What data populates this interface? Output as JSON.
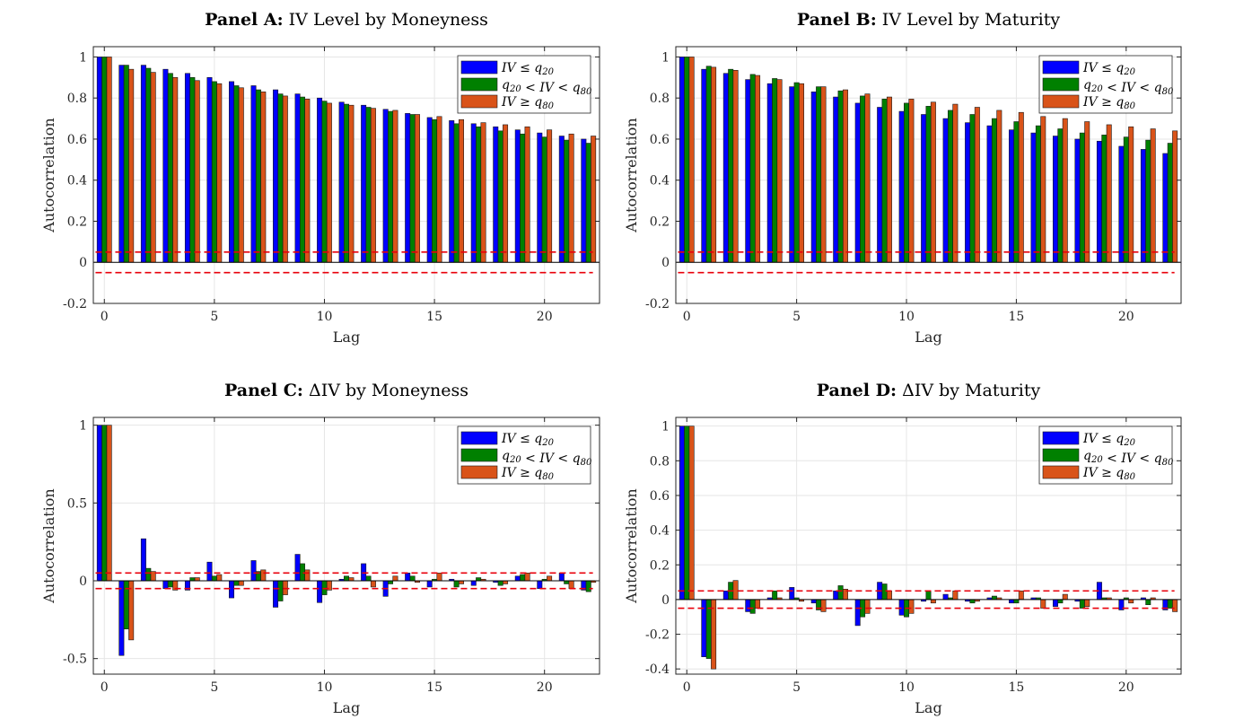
{
  "colors": {
    "blue": "#0000ff",
    "green": "#008000",
    "orange": "#d95319",
    "threshold": "#e8000b"
  },
  "chart_data": [
    {
      "type": "bar",
      "title_bold": "Panel A:",
      "title_rest": "IV Level by Moneyness",
      "xlabel": "Lag",
      "ylabel": "Autocorrelation",
      "ylim": [
        -0.2,
        1.05
      ],
      "xlim": [
        -0.5,
        22.5
      ],
      "yticks": [
        -0.2,
        0,
        0.2,
        0.4,
        0.6,
        0.8,
        1
      ],
      "ytick_labels": [
        "-0.2",
        "0",
        "0.2",
        "0.4",
        "0.6",
        "0.8",
        "1"
      ],
      "xticks": [
        0,
        5,
        10,
        15,
        20
      ],
      "xtick_labels": [
        "0",
        "5",
        "10",
        "15",
        "20"
      ],
      "grid": true,
      "legend_position": "top-right",
      "conf_band": [
        0.05,
        -0.05
      ],
      "x": [
        0,
        1,
        2,
        3,
        4,
        5,
        6,
        7,
        8,
        9,
        10,
        11,
        12,
        13,
        14,
        15,
        16,
        17,
        18,
        19,
        20,
        21,
        22
      ],
      "series": [
        {
          "name": "IV ≤ q20",
          "color": "#0000ff",
          "values": [
            1,
            0.96,
            0.96,
            0.94,
            0.92,
            0.9,
            0.88,
            0.86,
            0.84,
            0.82,
            0.8,
            0.78,
            0.765,
            0.745,
            0.725,
            0.705,
            0.69,
            0.675,
            0.66,
            0.645,
            0.63,
            0.615,
            0.6
          ]
        },
        {
          "name": "q20 < IV < q80",
          "color": "#008000",
          "values": [
            1,
            0.96,
            0.945,
            0.92,
            0.9,
            0.88,
            0.86,
            0.84,
            0.82,
            0.805,
            0.785,
            0.77,
            0.755,
            0.735,
            0.72,
            0.695,
            0.675,
            0.66,
            0.64,
            0.625,
            0.61,
            0.595,
            0.58
          ]
        },
        {
          "name": "IV ≥ q80",
          "color": "#d95319",
          "values": [
            1,
            0.94,
            0.925,
            0.9,
            0.885,
            0.87,
            0.85,
            0.83,
            0.81,
            0.795,
            0.775,
            0.765,
            0.75,
            0.74,
            0.72,
            0.71,
            0.695,
            0.68,
            0.67,
            0.66,
            0.645,
            0.625,
            0.615
          ]
        }
      ]
    },
    {
      "type": "bar",
      "title_bold": "Panel B:",
      "title_rest": "IV Level by Maturity",
      "xlabel": "Lag",
      "ylabel": "Autocorrelation",
      "ylim": [
        -0.2,
        1.05
      ],
      "xlim": [
        -0.5,
        22.5
      ],
      "yticks": [
        -0.2,
        0,
        0.2,
        0.4,
        0.6,
        0.8,
        1
      ],
      "ytick_labels": [
        "-0.2",
        "0",
        "0.2",
        "0.4",
        "0.6",
        "0.8",
        "1"
      ],
      "xticks": [
        0,
        5,
        10,
        15,
        20
      ],
      "xtick_labels": [
        "0",
        "5",
        "10",
        "15",
        "20"
      ],
      "grid": true,
      "legend_position": "top-right",
      "conf_band": [
        0.05,
        -0.05
      ],
      "x": [
        0,
        1,
        2,
        3,
        4,
        5,
        6,
        7,
        8,
        9,
        10,
        11,
        12,
        13,
        14,
        15,
        16,
        17,
        18,
        19,
        20,
        21,
        22
      ],
      "series": [
        {
          "name": "IV ≤ q20",
          "color": "#0000ff",
          "values": [
            1,
            0.94,
            0.92,
            0.89,
            0.87,
            0.855,
            0.83,
            0.805,
            0.775,
            0.755,
            0.735,
            0.72,
            0.7,
            0.68,
            0.665,
            0.645,
            0.63,
            0.615,
            0.6,
            0.59,
            0.565,
            0.55,
            0.53
          ]
        },
        {
          "name": "q20 < IV < q80",
          "color": "#008000",
          "values": [
            1,
            0.955,
            0.94,
            0.915,
            0.895,
            0.875,
            0.855,
            0.835,
            0.81,
            0.795,
            0.775,
            0.76,
            0.74,
            0.72,
            0.7,
            0.685,
            0.665,
            0.65,
            0.63,
            0.62,
            0.61,
            0.595,
            0.58
          ]
        },
        {
          "name": "IV ≥ q80",
          "color": "#d95319",
          "values": [
            1,
            0.95,
            0.935,
            0.91,
            0.89,
            0.87,
            0.855,
            0.84,
            0.82,
            0.805,
            0.795,
            0.78,
            0.77,
            0.755,
            0.74,
            0.73,
            0.71,
            0.7,
            0.685,
            0.67,
            0.66,
            0.65,
            0.64
          ]
        }
      ]
    },
    {
      "type": "bar",
      "title_bold": "Panel C:",
      "title_rest": "ΔIV by Moneyness",
      "xlabel": "Lag",
      "ylabel": "Autocorrelation",
      "ylim": [
        -0.6,
        1.05
      ],
      "xlim": [
        -0.5,
        22.5
      ],
      "yticks": [
        -0.5,
        0,
        0.5,
        1
      ],
      "ytick_labels": [
        "-0.5",
        "0",
        "0.5",
        "1"
      ],
      "xticks": [
        0,
        5,
        10,
        15,
        20
      ],
      "xtick_labels": [
        "0",
        "5",
        "10",
        "15",
        "20"
      ],
      "grid": true,
      "legend_position": "top-right",
      "conf_band": [
        0.05,
        -0.05
      ],
      "x": [
        0,
        1,
        2,
        3,
        4,
        5,
        6,
        7,
        8,
        9,
        10,
        11,
        12,
        13,
        14,
        15,
        16,
        17,
        18,
        19,
        20,
        21,
        22
      ],
      "series": [
        {
          "name": "IV ≤ q20",
          "color": "#0000ff",
          "values": [
            1,
            -0.48,
            0.27,
            -0.05,
            -0.06,
            0.12,
            -0.11,
            0.13,
            -0.17,
            0.17,
            -0.14,
            0.01,
            0.11,
            -0.1,
            0.05,
            -0.04,
            0.01,
            -0.03,
            -0.01,
            0.03,
            -0.05,
            0.05,
            -0.06
          ]
        },
        {
          "name": "q20 < IV < q80",
          "color": "#008000",
          "values": [
            1,
            -0.31,
            0.08,
            -0.04,
            0.02,
            0.03,
            -0.03,
            0.06,
            -0.13,
            0.11,
            -0.09,
            0.03,
            0.03,
            -0.02,
            0.03,
            0.01,
            -0.04,
            0.02,
            -0.03,
            0.04,
            0.01,
            -0.02,
            -0.07
          ]
        },
        {
          "name": "IV ≥ q80",
          "color": "#d95319",
          "values": [
            1,
            -0.38,
            0.06,
            -0.06,
            0.02,
            0.04,
            -0.03,
            0.07,
            -0.09,
            0.07,
            -0.06,
            0.02,
            -0.04,
            0.03,
            -0.01,
            0.05,
            -0.02,
            0.01,
            -0.02,
            0.05,
            0.03,
            -0.05,
            -0.01
          ]
        }
      ]
    },
    {
      "type": "bar",
      "title_bold": "Panel D:",
      "title_rest": "ΔIV by Maturity",
      "xlabel": "Lag",
      "ylabel": "Autocorrelation",
      "ylim": [
        -0.43,
        1.05
      ],
      "xlim": [
        -0.5,
        22.5
      ],
      "yticks": [
        -0.4,
        -0.2,
        0,
        0.2,
        0.4,
        0.6,
        0.8,
        1
      ],
      "ytick_labels": [
        "-0.4",
        "-0.2",
        "0",
        "0.2",
        "0.4",
        "0.6",
        "0.8",
        "1"
      ],
      "xticks": [
        0,
        5,
        10,
        15,
        20
      ],
      "xtick_labels": [
        "0",
        "5",
        "10",
        "15",
        "20"
      ],
      "grid": true,
      "legend_position": "top-right",
      "conf_band": [
        0.05,
        -0.05
      ],
      "x": [
        0,
        1,
        2,
        3,
        4,
        5,
        6,
        7,
        8,
        9,
        10,
        11,
        12,
        13,
        14,
        15,
        16,
        17,
        18,
        19,
        20,
        21,
        22
      ],
      "series": [
        {
          "name": "IV ≤ q20",
          "color": "#0000ff",
          "values": [
            1,
            -0.33,
            0.05,
            -0.07,
            0.01,
            0.07,
            -0.02,
            0.05,
            -0.15,
            0.1,
            -0.09,
            -0.01,
            0.03,
            -0.01,
            0.01,
            -0.02,
            0.01,
            -0.04,
            -0.01,
            0.1,
            -0.06,
            0.01,
            -0.06
          ]
        },
        {
          "name": "q20 < IV < q80",
          "color": "#008000",
          "values": [
            1,
            -0.34,
            0.1,
            -0.08,
            0.05,
            0.01,
            -0.06,
            0.08,
            -0.1,
            0.09,
            -0.1,
            0.05,
            0.01,
            -0.02,
            0.02,
            -0.02,
            0.01,
            -0.02,
            -0.05,
            0.01,
            0.01,
            -0.03,
            -0.05
          ]
        },
        {
          "name": "IV ≥ q80",
          "color": "#d95319",
          "values": [
            1,
            -0.4,
            0.11,
            -0.05,
            0.01,
            -0.01,
            -0.07,
            0.06,
            -0.08,
            0.05,
            -0.08,
            -0.02,
            0.05,
            -0.01,
            0.01,
            0.05,
            -0.05,
            0.03,
            -0.04,
            0.01,
            -0.02,
            0.01,
            -0.07
          ]
        }
      ]
    }
  ]
}
